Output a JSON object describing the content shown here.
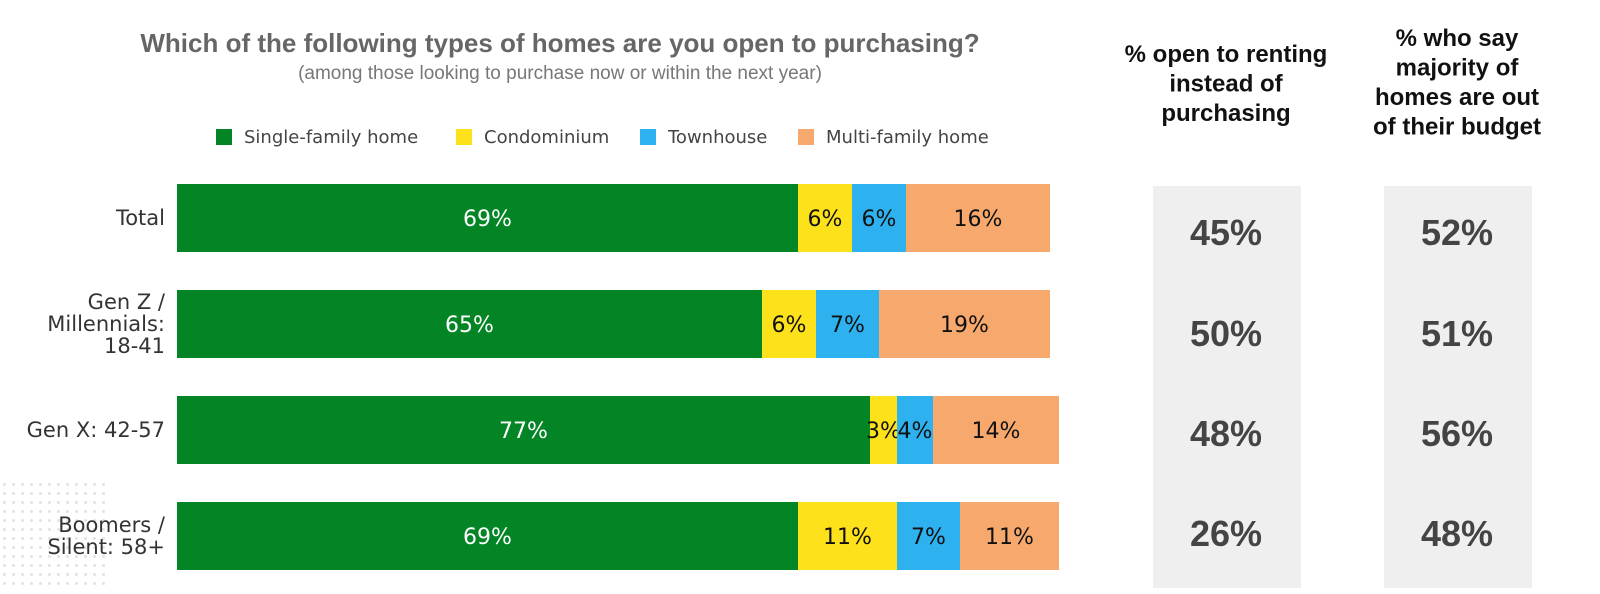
{
  "chart_data": {
    "type": "bar",
    "orientation": "horizontal",
    "stacked": true,
    "title": "Which of the following types of homes are you open to purchasing?",
    "subtitle": "(among those looking to purchase now or within the next year)",
    "legend_placement": "top",
    "grid": false,
    "xlim": [
      0,
      100
    ],
    "categories": [
      [
        "Total"
      ],
      [
        "Gen Z /",
        "Millennials:",
        "18-41"
      ],
      [
        "Gen X: 42-57"
      ],
      [
        "Boomers /",
        "Silent: 58+"
      ]
    ],
    "series": [
      {
        "name": "Single-family home",
        "color": "#038425",
        "label_color": "#ffffff",
        "values": [
          69,
          65,
          77,
          69
        ],
        "labels": [
          "69%",
          "65%",
          "77%",
          "69%"
        ]
      },
      {
        "name": "Condominium",
        "color": "#fde11b",
        "label_color": "#111111",
        "values": [
          6,
          6,
          3,
          11
        ],
        "labels": [
          "6%",
          "6%",
          "3%",
          "11%"
        ]
      },
      {
        "name": "Townhouse",
        "color": "#2eb1ef",
        "label_color": "#111111",
        "values": [
          6,
          7,
          4,
          7
        ],
        "labels": [
          "6%",
          "7%",
          "4%",
          "7%"
        ]
      },
      {
        "name": "Multi-family home",
        "color": "#f7a96d",
        "label_color": "#111111",
        "values": [
          16,
          19,
          14,
          11
        ],
        "labels": [
          "16%",
          "19%",
          "14%",
          "11%"
        ]
      }
    ],
    "side_columns": [
      {
        "header": [
          "% open to renting",
          "instead of",
          "purchasing"
        ],
        "values": [
          "45%",
          "50%",
          "48%",
          "26%"
        ],
        "bg": "#efefef"
      },
      {
        "header": [
          "% who say",
          "majority of",
          "homes are out",
          "of their budget"
        ],
        "values": [
          "52%",
          "51%",
          "56%",
          "48%"
        ],
        "bg": "#efefef"
      }
    ]
  }
}
